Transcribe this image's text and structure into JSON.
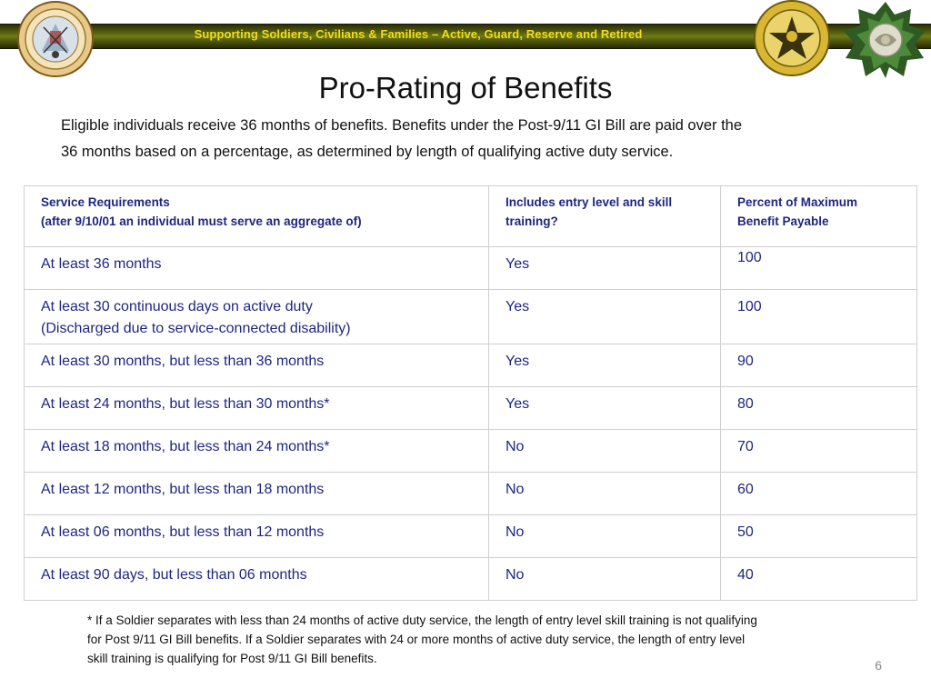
{
  "header": {
    "banner_text": "Supporting Soldiers, Civilians & Families – Active, Guard, Reserve and Retired",
    "seals": [
      {
        "name": "department-of-the-army-seal",
        "text": "DEPARTMENT OF THE ARMY · UNITED STATES OF AMERICA · 1775"
      },
      {
        "name": "deputy-chief-of-staff-g1-seal",
        "text": "DEPUTY CHIEF OF STAFF G-1"
      },
      {
        "name": "general-staff-insignia",
        "text": ""
      }
    ],
    "colors": {
      "banner_text": "#f2dc1c",
      "banner_bg": "#51590d",
      "table_text": "#1f2680"
    }
  },
  "slide": {
    "title": "Pro-Rating of Benefits",
    "intro_line1": "Eligible individuals receive 36 months of benefits.  Benefits under the Post-9/11 GI Bill are paid over the",
    "intro_line2": "36 months based on a percentage, as determined by length of qualifying active duty service.",
    "page_number": "6"
  },
  "table": {
    "headers": [
      {
        "line1": "Service Requirements",
        "line2": "(after  9/10/01 an individual must serve an aggregate of)"
      },
      {
        "line1": "Includes entry level and skill",
        "line2": "training?"
      },
      {
        "line1": "Percent of Maximum",
        "line2": "Benefit Payable"
      }
    ],
    "rows": [
      {
        "service": "At least 36 months",
        "service2": "",
        "training": "Yes",
        "percent": "100"
      },
      {
        "service": "At least 30 continuous days on active duty",
        "service2": "(Discharged due to service-connected disability)",
        "training": "Yes",
        "percent": "100"
      },
      {
        "service": "At least 30 months, but less than 36 months",
        "service2": "",
        "training": "Yes",
        "percent": "90"
      },
      {
        "service": "At least 24 months, but less than 30 months*",
        "service2": "",
        "training": "Yes",
        "percent": "80"
      },
      {
        "service": "At least 18 months, but less than 24 months*",
        "service2": "",
        "training": "No",
        "percent": "70"
      },
      {
        "service": "At least 12 months, but less than 18 months",
        "service2": "",
        "training": "No",
        "percent": "60"
      },
      {
        "service": "At least 06 months, but less than 12 months",
        "service2": "",
        "training": "No",
        "percent": "50"
      },
      {
        "service": "At least 90 days, but less than 06 months",
        "service2": "",
        "training": "No",
        "percent": "40"
      }
    ]
  },
  "footnote": {
    "line1": "* If a Soldier separates with less than 24 months of active duty service, the length of entry level skill training is not qualifying",
    "line2": "for Post 9/11 GI Bill benefits.  If a Soldier separates with 24 or more months of active duty service, the length of entry level",
    "line3": "skill training is qualifying for Post 9/11 GI Bill benefits."
  }
}
